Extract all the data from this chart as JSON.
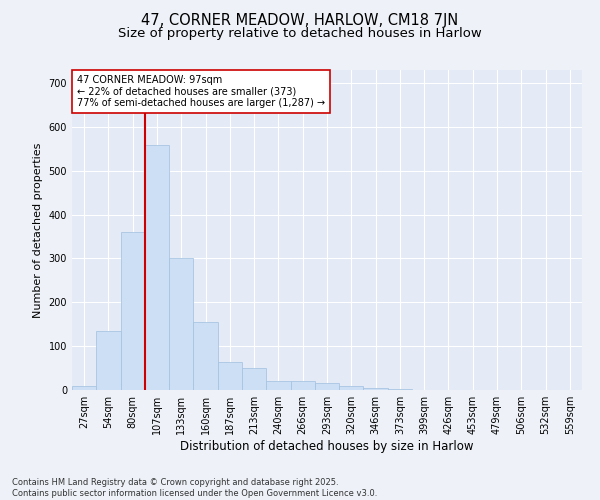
{
  "title1": "47, CORNER MEADOW, HARLOW, CM18 7JN",
  "title2": "Size of property relative to detached houses in Harlow",
  "xlabel": "Distribution of detached houses by size in Harlow",
  "ylabel": "Number of detached properties",
  "categories": [
    "27sqm",
    "54sqm",
    "80sqm",
    "107sqm",
    "133sqm",
    "160sqm",
    "187sqm",
    "213sqm",
    "240sqm",
    "266sqm",
    "293sqm",
    "320sqm",
    "346sqm",
    "373sqm",
    "399sqm",
    "426sqm",
    "453sqm",
    "479sqm",
    "506sqm",
    "532sqm",
    "559sqm"
  ],
  "values": [
    10,
    135,
    360,
    560,
    300,
    155,
    65,
    50,
    20,
    20,
    15,
    10,
    5,
    2,
    1,
    1,
    1,
    0,
    0,
    0,
    0
  ],
  "bar_color": "#ccdff5",
  "bar_edge_color": "#a0c0e0",
  "vline_x": 2.5,
  "vline_color": "#cc0000",
  "annotation_text": "47 CORNER MEADOW: 97sqm\n← 22% of detached houses are smaller (373)\n77% of semi-detached houses are larger (1,287) →",
  "annotation_box_color": "#ffffff",
  "annotation_box_edge": "#cc0000",
  "ylim": [
    0,
    730
  ],
  "yticks": [
    0,
    100,
    200,
    300,
    400,
    500,
    600,
    700
  ],
  "background_color": "#eef2f8",
  "plot_bg": "#e4eaf6",
  "grid_color": "#ffffff",
  "footer_text": "Contains HM Land Registry data © Crown copyright and database right 2025.\nContains public sector information licensed under the Open Government Licence v3.0.",
  "title1_fontsize": 10.5,
  "title2_fontsize": 9.5,
  "xlabel_fontsize": 8.5,
  "ylabel_fontsize": 8,
  "tick_fontsize": 7,
  "annotation_fontsize": 7,
  "footer_fontsize": 6
}
